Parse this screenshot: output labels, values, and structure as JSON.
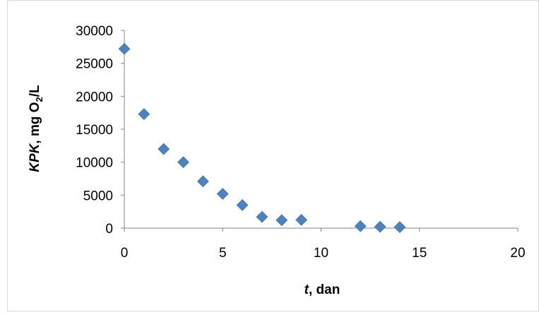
{
  "chart_data": {
    "type": "scatter",
    "xlabel_italic": "t",
    "xlabel_rest": ", dan",
    "ylabel_italic": "KPK",
    "ylabel_rest": ", mg O",
    "ylabel_subscript": "2",
    "ylabel_tail": "/L",
    "xlim": [
      0,
      20
    ],
    "ylim": [
      0,
      30000
    ],
    "x_ticks": [
      0,
      5,
      10,
      15,
      20
    ],
    "y_ticks": [
      0,
      5000,
      10000,
      15000,
      20000,
      25000,
      30000
    ],
    "grid": false,
    "legend": "none",
    "marker": "diamond",
    "marker_color": "#4f81bd",
    "points": [
      {
        "x": 0,
        "y": 27200
      },
      {
        "x": 1,
        "y": 17300
      },
      {
        "x": 2,
        "y": 12000
      },
      {
        "x": 3,
        "y": 10000
      },
      {
        "x": 4,
        "y": 7100
      },
      {
        "x": 5,
        "y": 5200
      },
      {
        "x": 6,
        "y": 3500
      },
      {
        "x": 7,
        "y": 1700
      },
      {
        "x": 8,
        "y": 1200
      },
      {
        "x": 9,
        "y": 1250
      },
      {
        "x": 12,
        "y": 300
      },
      {
        "x": 13,
        "y": 200
      },
      {
        "x": 14,
        "y": 150
      }
    ]
  }
}
